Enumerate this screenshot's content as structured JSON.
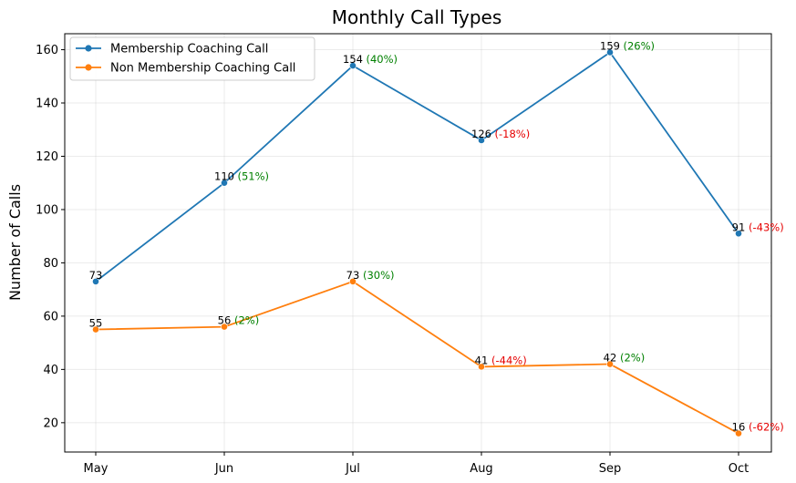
{
  "chart_data": {
    "type": "line",
    "title": "Monthly Call Types",
    "xlabel": "",
    "ylabel": "Number of Calls",
    "categories": [
      "May",
      "Jun",
      "Jul",
      "Aug",
      "Sep",
      "Oct"
    ],
    "ylim": [
      9,
      166
    ],
    "yticks": [
      20,
      40,
      60,
      80,
      100,
      120,
      140,
      160
    ],
    "grid": true,
    "legend_position": "upper-left",
    "series": [
      {
        "name": "Membership Coaching Call",
        "color": "#1f77b4",
        "values": [
          73,
          110,
          154,
          126,
          159,
          91
        ],
        "pct_change": [
          "",
          "(51%)",
          "(40%)",
          "(-18%)",
          "(26%)",
          "(-43%)"
        ]
      },
      {
        "name": "Non Membership Coaching Call",
        "color": "#ff7f0e",
        "values": [
          55,
          56,
          73,
          41,
          42,
          16
        ],
        "pct_change": [
          "",
          "(2%)",
          "(30%)",
          "(-44%)",
          "(2%)",
          "(-62%)"
        ]
      }
    ],
    "positive_color": "#008000",
    "negative_color": "#e60000"
  }
}
